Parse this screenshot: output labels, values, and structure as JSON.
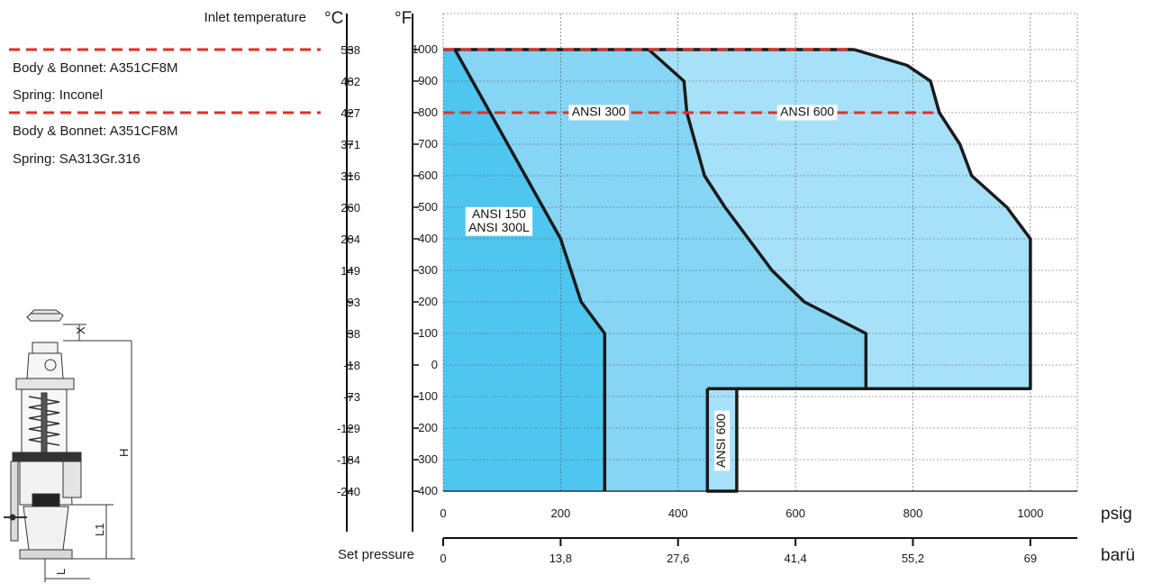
{
  "chart_data": {
    "type": "area",
    "titles": {
      "inlet_temperature": "Inlet temperature",
      "celsius_unit": "°C",
      "fahrenheit_unit": "°F",
      "psig_unit": "psig",
      "bar_unit": "barü",
      "set_pressure": "Set pressure"
    },
    "y_ticks_f": [
      "1000",
      "900",
      "800",
      "700",
      "600",
      "500",
      "400",
      "300",
      "200",
      "100",
      "0",
      "-100",
      "-200",
      "-300",
      "-400"
    ],
    "y_ticks_c": [
      "538",
      "482",
      "427",
      "371",
      "316",
      "260",
      "204",
      "149",
      "93",
      "38",
      "-18",
      "-73",
      "-129",
      "-184",
      "-240"
    ],
    "x_ticks_psig": [
      "0",
      "200",
      "400",
      "600",
      "800",
      "1000"
    ],
    "x_ticks_bar": [
      "0",
      "13,8",
      "27,6",
      "41,4",
      "55,2",
      "69"
    ],
    "ylim_f": [
      -400,
      1000
    ],
    "xlim_psig": [
      0,
      1080
    ],
    "grid": true,
    "colors": {
      "region_150": "#4ec6f0",
      "region_300": "#86d5f5",
      "region_600": "#a6e1f9",
      "boundary": "#1a1a1a",
      "material_line": "#e0302a"
    },
    "series": [
      {
        "name": "ANSI 150 / ANSI 300L",
        "points": [
          [
            20,
            1000
          ],
          [
            80,
            800
          ],
          [
            170,
            500
          ],
          [
            200,
            400
          ],
          [
            235,
            200
          ],
          [
            275,
            100
          ],
          [
            275,
            -400
          ]
        ]
      },
      {
        "name": "ANSI 300",
        "points": [
          [
            350,
            1000
          ],
          [
            410,
            900
          ],
          [
            415,
            800
          ],
          [
            430,
            700
          ],
          [
            445,
            600
          ],
          [
            480,
            500
          ],
          [
            520,
            400
          ],
          [
            560,
            300
          ],
          [
            615,
            200
          ],
          [
            720,
            100
          ],
          [
            720,
            -75
          ]
        ]
      },
      {
        "name": "ANSI 600",
        "points": [
          [
            700,
            1000
          ],
          [
            790,
            950
          ],
          [
            830,
            900
          ],
          [
            845,
            800
          ],
          [
            880,
            700
          ],
          [
            900,
            600
          ],
          [
            960,
            500
          ],
          [
            1000,
            400
          ],
          [
            1000,
            -75
          ]
        ]
      },
      {
        "name": "ANSI 600",
        "points": [
          [
            450,
            -75
          ],
          [
            450,
            -400
          ],
          [
            500,
            -400
          ],
          [
            500,
            -75
          ]
        ]
      }
    ],
    "region_labels": [
      {
        "text": "ANSI 150"
      },
      {
        "text": "ANSI 300L"
      },
      {
        "text": "ANSI 300"
      },
      {
        "text": "ANSI 600"
      },
      {
        "text": "ANSI 600"
      }
    ],
    "material_notes": [
      {
        "body": "Body & Bonnet: A351CF8M",
        "spring": "Spring: Inconel",
        "limit_f": 1000
      },
      {
        "body": "Body & Bonnet: A351CF8M",
        "spring": "Spring: SA313Gr.316",
        "limit_f": 800
      }
    ],
    "illustration_labels": [
      "X",
      "H",
      "L1",
      "L"
    ]
  }
}
